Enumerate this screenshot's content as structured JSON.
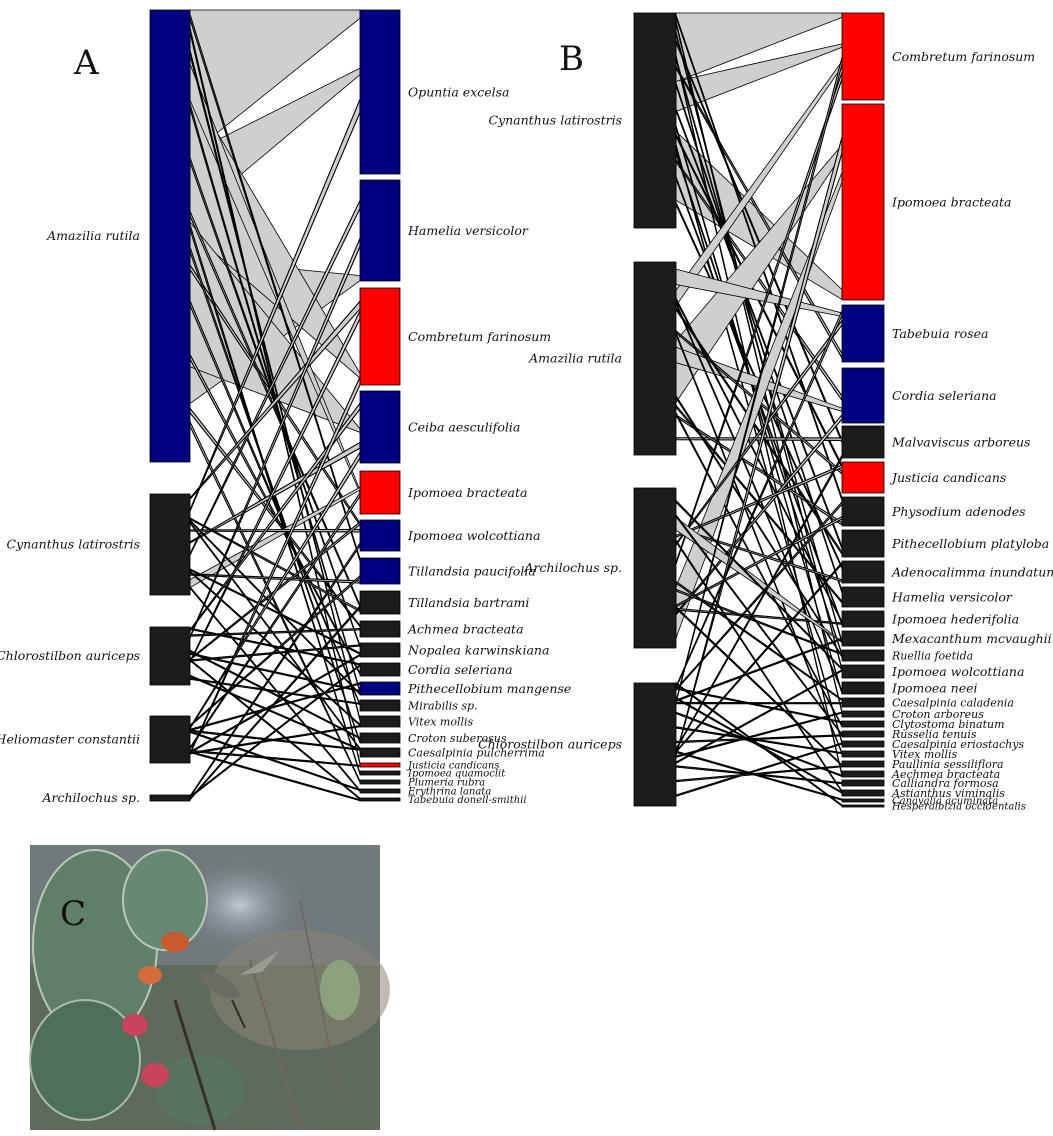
{
  "colors": {
    "blue": "#000080",
    "red": "#ff0000",
    "black": "#1c1c1c",
    "link_fill": "#cfcfcf",
    "link_stroke": "#000000"
  },
  "panels": [
    {
      "label": "A",
      "birds": [
        {
          "name": "Amazilia rutila",
          "color": "blue"
        },
        {
          "name": "Cynanthus latirostris",
          "color": "black"
        },
        {
          "name": "Chlorostilbon auriceps",
          "color": "black"
        },
        {
          "name": "Heliomaster constantii",
          "color": "black"
        },
        {
          "name": "Archilochus sp.",
          "color": "black"
        }
      ],
      "plants": [
        {
          "name": "Opuntia excelsa",
          "color": "blue"
        },
        {
          "name": "Hamelia versicolor",
          "color": "blue"
        },
        {
          "name": "Combretum farinosum",
          "color": "red"
        },
        {
          "name": "Ceiba aesculifolia",
          "color": "blue"
        },
        {
          "name": "Ipomoea bracteata",
          "color": "red"
        },
        {
          "name": "Ipomoea wolcottiana",
          "color": "blue"
        },
        {
          "name": "Tillandsia paucifolia",
          "color": "blue"
        },
        {
          "name": "Tillandsia bartrami",
          "color": "black"
        },
        {
          "name": "Achmea bracteata",
          "color": "black"
        },
        {
          "name": "Nopalea karwinskiana",
          "color": "black"
        },
        {
          "name": "Cordia seleriana",
          "color": "black"
        },
        {
          "name": "Pithecellobium mangense",
          "color": "blue"
        },
        {
          "name": "Mirabilis sp.",
          "color": "black"
        },
        {
          "name": "Vitex mollis",
          "color": "black"
        },
        {
          "name": "Croton suberosus",
          "color": "black"
        },
        {
          "name": "Caesalpinia pulcherrima",
          "color": "black"
        },
        {
          "name": "Justicia candicans",
          "color": "red"
        },
        {
          "name": "Ipomoea quamoclit",
          "color": "black"
        },
        {
          "name": "Plumeria rubra",
          "color": "black"
        },
        {
          "name": "Erythrina lanata",
          "color": "black"
        },
        {
          "name": "Tabebuia donell-smithii",
          "color": "black"
        }
      ]
    },
    {
      "label": "B",
      "birds": [
        {
          "name": "Cynanthus latirostris",
          "color": "black"
        },
        {
          "name": "Amazilia rutila",
          "color": "black"
        },
        {
          "name": "Archilochus sp.",
          "color": "black"
        },
        {
          "name": "Chlorostilbon auriceps",
          "color": "black"
        }
      ],
      "plants": [
        {
          "name": "Combretum farinosum",
          "color": "red"
        },
        {
          "name": "Ipomoea bracteata",
          "color": "red"
        },
        {
          "name": "Tabebuia rosea",
          "color": "blue"
        },
        {
          "name": "Cordia seleriana",
          "color": "blue"
        },
        {
          "name": "Malvaviscus arboreus",
          "color": "black"
        },
        {
          "name": "Justicia candicans",
          "color": "red"
        },
        {
          "name": "Physodium adenodes",
          "color": "black"
        },
        {
          "name": "Pithecellobium platyloba",
          "color": "black"
        },
        {
          "name": "Adenocalimma inundatum",
          "color": "black"
        },
        {
          "name": "Hamelia versicolor",
          "color": "black"
        },
        {
          "name": "Ipomoea hederifolia",
          "color": "black"
        },
        {
          "name": "Mexacanthum mcvaughii",
          "color": "black"
        },
        {
          "name": "Ruellia foetida",
          "color": "black"
        },
        {
          "name": "Ipomoea wolcottiana",
          "color": "black"
        },
        {
          "name": "Ipomoea neei",
          "color": "black"
        },
        {
          "name": "Caesalpinia caladenia",
          "color": "black"
        },
        {
          "name": "Croton arboreus",
          "color": "black"
        },
        {
          "name": "Clytostoma binatum",
          "color": "black"
        },
        {
          "name": "Russelia tenuis",
          "color": "black"
        },
        {
          "name": "Caesalpinia eriostachys",
          "color": "black"
        },
        {
          "name": "Vitex mollis",
          "color": "black"
        },
        {
          "name": "Paullinia sessiliflora",
          "color": "black"
        },
        {
          "name": "Aechmea bracteata",
          "color": "black"
        },
        {
          "name": "Calliandra formosa",
          "color": "black"
        },
        {
          "name": "Astianthus viminalis",
          "color": "black"
        },
        {
          "name": "Canavalia acuminata",
          "color": "black"
        },
        {
          "name": "Hesperalbizia occidentalis",
          "color": "black"
        }
      ]
    }
  ],
  "photo": {
    "label": "C"
  }
}
